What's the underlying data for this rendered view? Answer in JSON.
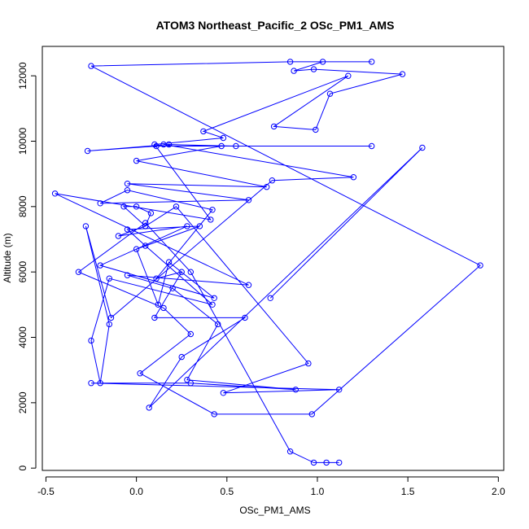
{
  "chart_data": {
    "type": "line",
    "title": "ATOM3 Northeast_Pacific_2 OSc_PM1_AMS",
    "xlabel": "OSc_PM1_AMS",
    "ylabel": "Altitude (m)",
    "xlim": [
      -0.52,
      2.03
    ],
    "ylim": [
      -70,
      12900
    ],
    "xticks": [
      -0.5,
      0.0,
      0.5,
      1.0,
      1.5,
      2.0
    ],
    "xtick_labels": [
      "-0.5",
      "0.0",
      "0.5",
      "1.0",
      "1.5",
      "2.0"
    ],
    "yticks": [
      0,
      2000,
      4000,
      6000,
      8000,
      10000,
      12000
    ],
    "ytick_labels": [
      "0",
      "2000",
      "4000",
      "6000",
      "8000",
      "10000",
      "12000"
    ],
    "grid": false,
    "legend": "none",
    "line_color": "#0000ff",
    "marker": "open-circle",
    "series": [
      {
        "x": [
          1.12,
          1.05,
          0.98,
          0.85,
          0.3,
          0.05,
          -0.32,
          0.15,
          0.3,
          0.02,
          0.43,
          0.97,
          1.9,
          -0.25,
          0.85,
          1.3,
          1.03,
          0.87,
          0.98,
          1.47,
          1.07,
          0.99,
          0.76,
          1.17,
          0.37,
          0.48,
          0.1,
          0.41,
          -0.45,
          0.62,
          -0.05,
          0.2,
          0.45,
          0.28,
          0.88,
          0.3,
          -0.25,
          1.12,
          0.48,
          0.95,
          0.22,
          0.05,
          -0.07,
          0.0,
          0.08,
          0.05,
          -0.1,
          0.28,
          -0.2,
          0.43,
          0.18,
          0.12,
          0.0,
          0.35,
          -0.05,
          0.05,
          0.42,
          -0.15,
          -0.25,
          -0.2,
          -0.15,
          -0.28,
          -0.14,
          0.75,
          1.2,
          0.15,
          0.55,
          1.3,
          0.11,
          -0.27,
          0.18,
          0.47,
          0.0,
          0.72,
          -0.05,
          0.62,
          -0.2,
          -0.05,
          0.42,
          0.11,
          0.25,
          0.1,
          0.6,
          0.25,
          0.07,
          1.58,
          0.74
        ],
        "y": [
          170,
          170,
          170,
          510,
          6000,
          7500,
          6000,
          4900,
          4100,
          2900,
          1650,
          1650,
          6200,
          12300,
          12430,
          12430,
          12430,
          12150,
          12200,
          12050,
          11450,
          10350,
          10450,
          12000,
          10300,
          10100,
          9900,
          7600,
          8400,
          5600,
          5900,
          5500,
          4400,
          2700,
          2400,
          2600,
          2600,
          2400,
          2300,
          3200,
          8000,
          7400,
          8000,
          8000,
          7800,
          7400,
          7100,
          7400,
          6200,
          5200,
          6300,
          5000,
          6700,
          7400,
          7300,
          6800,
          5000,
          5800,
          3900,
          2600,
          4400,
          7400,
          4600,
          8800,
          8900,
          9900,
          9850,
          9850,
          9850,
          9700,
          9900,
          9850,
          9400,
          8600,
          8700,
          8200,
          8100,
          8500,
          7900,
          5800,
          6000,
          4600,
          4600,
          3400,
          1850,
          9800,
          5200
        ]
      }
    ]
  }
}
